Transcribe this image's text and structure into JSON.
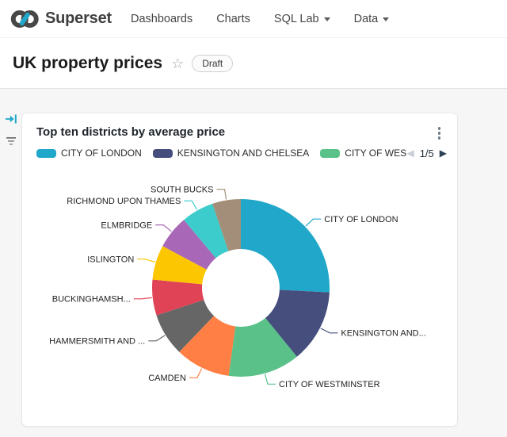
{
  "navbar": {
    "brand": "Superset",
    "items": [
      {
        "label": "Dashboards",
        "has_caret": false
      },
      {
        "label": "Charts",
        "has_caret": false
      },
      {
        "label": "SQL Lab",
        "has_caret": true
      },
      {
        "label": "Data",
        "has_caret": true
      }
    ]
  },
  "header": {
    "title": "UK property prices",
    "badge": "Draft"
  },
  "card": {
    "title": "Top ten districts by average price",
    "legend": {
      "visible_items": [
        {
          "label": "CITY OF LONDON",
          "color": "#20A7C9"
        },
        {
          "label": "KENSINGTON AND CHELSEA",
          "color": "#454E7C"
        },
        {
          "label": "CITY OF WES",
          "color": "#5AC189"
        }
      ],
      "page": "1/5"
    }
  },
  "chart_data": {
    "type": "pie",
    "donut": true,
    "title": "Top ten districts by average price",
    "value_unit": "percent (estimated from slice angles)",
    "legend_position": "top",
    "slices": [
      {
        "label": "CITY OF LONDON",
        "value": 25.8,
        "color": "#20A7C9"
      },
      {
        "label": "KENSINGTON AND...",
        "value": 13.3,
        "color": "#454E7C"
      },
      {
        "label": "CITY OF WESTMINSTER",
        "value": 13.1,
        "color": "#5AC189"
      },
      {
        "label": "CAMDEN",
        "value": 10.0,
        "color": "#FF7F44"
      },
      {
        "label": "HAMMERSMITH AND ...",
        "value": 7.8,
        "color": "#666666"
      },
      {
        "label": "BUCKINGHAMSH...",
        "value": 6.5,
        "color": "#E04355"
      },
      {
        "label": "ISLINGTON",
        "value": 6.3,
        "color": "#FCC700"
      },
      {
        "label": "ELMBRIDGE",
        "value": 6.1,
        "color": "#A868B7"
      },
      {
        "label": "RICHMOND UPON THAMES",
        "value": 5.9,
        "color": "#3CCCCB"
      },
      {
        "label": "SOUTH BUCKS",
        "value": 5.2,
        "color": "#A38F79"
      }
    ]
  },
  "colors": {
    "brand_teal": "#20A7C9",
    "page_background": "#F6F6F6",
    "pager_next": "#2F4358",
    "pager_prev_disabled": "#C9CFD6"
  }
}
